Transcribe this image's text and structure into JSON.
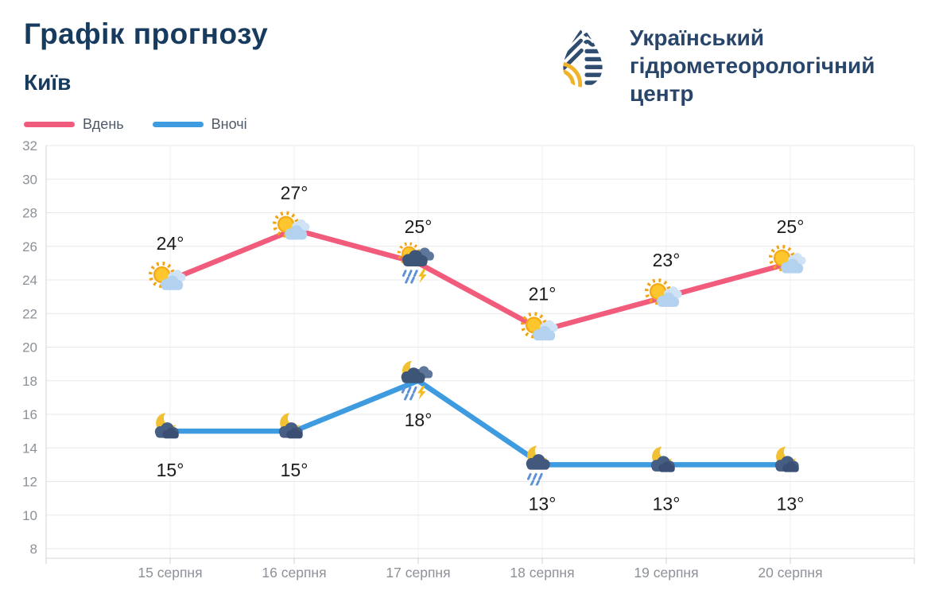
{
  "header": {
    "title": "Графік прогнозу",
    "subtitle": "Київ"
  },
  "logo": {
    "lines": [
      "Український",
      "гідрометеорологічний",
      "центр"
    ],
    "drop_icon_colors": {
      "navy": "#2e4d70",
      "yellow": "#f0b429"
    }
  },
  "legend": [
    {
      "label": "Вдень",
      "color": "#f25c7c"
    },
    {
      "label": "Вночі",
      "color": "#3f9be0"
    }
  ],
  "chart_data": {
    "type": "line",
    "title": "Графік прогнозу",
    "subtitle": "Київ",
    "categories": [
      "15 серпня",
      "16 серпня",
      "17 серпня",
      "18 серпня",
      "19 серпня",
      "20 серпня"
    ],
    "series": [
      {
        "name": "Вдень",
        "color": "#f25c7c",
        "values": [
          24,
          27,
          25,
          21,
          23,
          25
        ],
        "labels": [
          "24°",
          "27°",
          "25°",
          "21°",
          "23°",
          "25°"
        ],
        "icons": [
          "sun-cloud",
          "sun-cloud",
          "storm-day",
          "sun-cloud",
          "sun-cloud",
          "sun-cloud"
        ],
        "label_position": "above"
      },
      {
        "name": "Вночі",
        "color": "#3f9be0",
        "values": [
          15,
          15,
          18,
          13,
          13,
          13
        ],
        "labels": [
          "15°",
          "15°",
          "18°",
          "13°",
          "13°",
          "13°"
        ],
        "icons": [
          "moon-cloud",
          "moon-cloud",
          "storm-night",
          "rain-night",
          "moon-cloud",
          "moon-cloud"
        ],
        "label_position": "below"
      }
    ],
    "xlabel": "",
    "ylabel": "",
    "ylim": [
      8,
      32
    ],
    "ytick_step": 2,
    "grid": true,
    "legend_position": "top-left",
    "axis_colors": {
      "grid": "#e8e8e8",
      "axis": "#d4d4d4",
      "tick_text": "#8c9097",
      "value_text": "#1b1b1d"
    }
  }
}
